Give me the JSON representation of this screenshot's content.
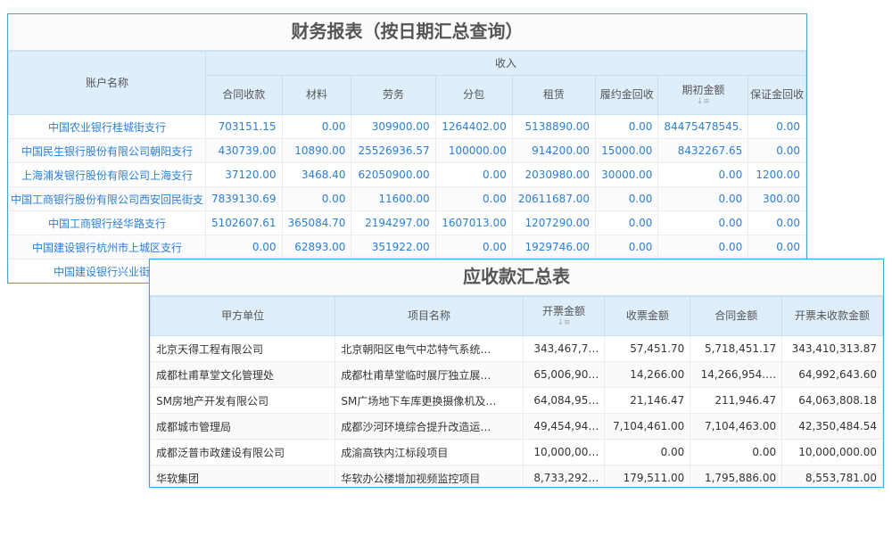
{
  "finance": {
    "title": "财务报表（按日期汇总查询）",
    "account_header": "账户名称",
    "group_header": "收入",
    "columns": [
      "合同收款",
      "材料",
      "劳务",
      "分包",
      "租赁",
      "履约金回收",
      "期初金额",
      "保证金回收"
    ],
    "sorted_column": "期初金额",
    "rows": [
      {
        "name": "中国农业银行桂城街支行",
        "v": [
          "703151.15",
          "0.00",
          "309900.00",
          "1264402.00",
          "5138890.00",
          "0.00",
          "84475478545.",
          "0.00"
        ]
      },
      {
        "name": "中国民生银行股份有限公司朝阳支行",
        "v": [
          "430739.00",
          "10890.00",
          "25526936.57",
          "100000.00",
          "914200.00",
          "15000.00",
          "8432267.65",
          "0.00"
        ]
      },
      {
        "name": "上海浦发银行股份有限公司上海支行",
        "v": [
          "37120.00",
          "3468.40",
          "62050900.00",
          "0.00",
          "2030980.00",
          "30000.00",
          "0.00",
          "1200.00"
        ]
      },
      {
        "name": "中国工商银行股份有限公司西安回民街支",
        "v": [
          "7839130.69",
          "0.00",
          "11600.00",
          "0.00",
          "20611687.00",
          "0.00",
          "0.00",
          "300.00"
        ]
      },
      {
        "name": "中国工商银行经华路支行",
        "v": [
          "5102607.61",
          "365084.70",
          "2194297.00",
          "1607013.00",
          "1207290.00",
          "0.00",
          "0.00",
          "0.00"
        ]
      },
      {
        "name": "中国建设银行杭州市上城区支行",
        "v": [
          "0.00",
          "62893.00",
          "351922.00",
          "0.00",
          "1929746.00",
          "0.00",
          "0.00",
          "0.00"
        ]
      },
      {
        "name": "中国建设银行兴业街支",
        "v": [
          "",
          "",
          "",
          "",
          "",
          "",
          "",
          ""
        ]
      }
    ]
  },
  "receivable": {
    "title": "应收款汇总表",
    "columns": [
      "甲方单位",
      "项目名称",
      "开票金额",
      "收票金额",
      "合同金额",
      "开票未收款金额"
    ],
    "sorted_column": "开票金额",
    "rows": [
      [
        "北京天得工程有限公司",
        "北京朝阳区电气中芯特气系统…",
        "343,467,7…",
        "57,451.70",
        "5,718,451.17",
        "343,410,313.87"
      ],
      [
        "成都杜甫草堂文化管理处",
        "成都杜甫草堂临时展厅独立展…",
        "65,006,90…",
        "14,266.00",
        "14,266,954.…",
        "64,992,643.60"
      ],
      [
        "SM房地产开发有限公司",
        "SM广场地下车库更换摄像机及…",
        "64,084,95…",
        "21,146.47",
        "211,946.47",
        "64,063,808.18"
      ],
      [
        "成都城市管理局",
        "成都沙河环境综合提升改造运…",
        "49,454,94…",
        "7,104,461.00",
        "7,104,463.00",
        "42,350,484.54"
      ],
      [
        "成都泛普市政建设有限公司",
        "成渝高铁内江标段项目",
        "10,000,00…",
        "0.00",
        "0.00",
        "10,000,000.00"
      ],
      [
        "华软集团",
        "华软办公楼增加视频监控项目",
        "8,733,292…",
        "179,511.00",
        "1,795,886.00",
        "8,553,781.00"
      ]
    ]
  },
  "colors": {
    "border": "#3aa8e4",
    "header_bg": "#dfeefb",
    "link_text": "#2a7fd8"
  }
}
